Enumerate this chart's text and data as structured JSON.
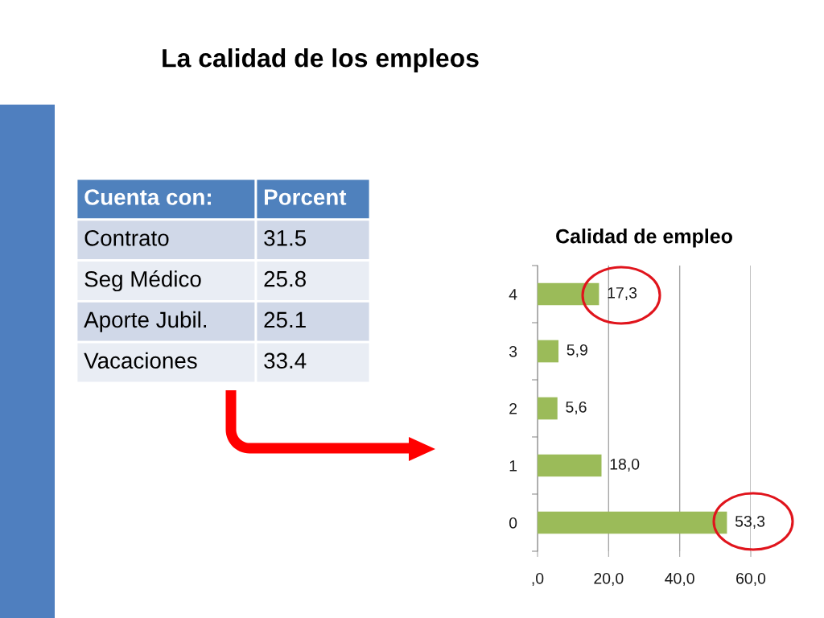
{
  "chart_data": [
    {
      "type": "other",
      "title": "La calidad de los empleos",
      "annotations": [
        "Cuenta con:",
        "Porcent"
      ],
      "categories": [
        "Contrato",
        "Seg Médico",
        "Aporte Jubil.",
        "Vacaciones"
      ],
      "values": [
        31.5,
        25.8,
        25.1,
        33.4
      ],
      "data_labels": true
    },
    {
      "type": "bar",
      "orientation": "horizontal",
      "title": "Calidad de empleo",
      "categories": [
        "4",
        "3",
        "2",
        "1",
        "0"
      ],
      "values": [
        17.3,
        5.9,
        5.6,
        18.0,
        53.3
      ],
      "color": "#9bbb59",
      "value_labels": [
        "17,3",
        "5,9",
        "5,6",
        "18,0",
        "53,3"
      ],
      "xlim": [
        0,
        60
      ],
      "xticks": [
        {
          "value": 0,
          "label": ",0"
        },
        {
          "value": 20,
          "label": "20,0"
        },
        {
          "value": 40,
          "label": "40,0"
        },
        {
          "value": 60,
          "label": "60,0"
        }
      ],
      "grid": "x"
    }
  ]
}
